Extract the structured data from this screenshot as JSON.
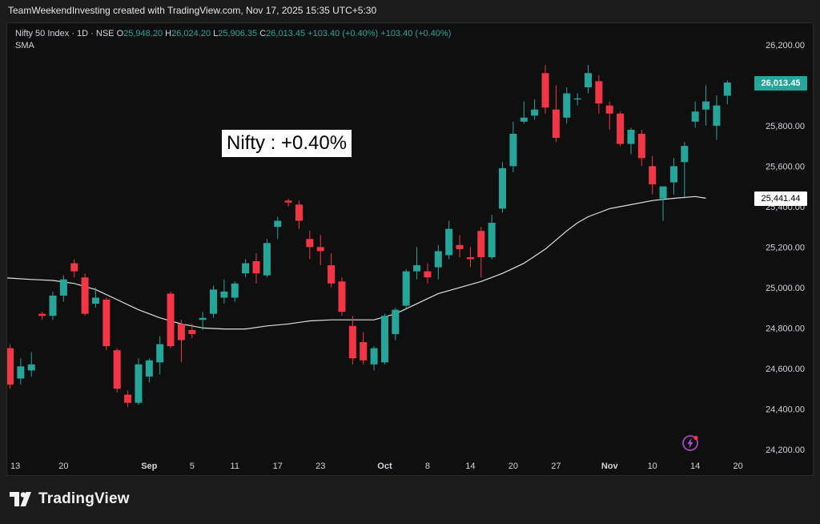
{
  "header": {
    "credit": "TeamWeekendInvesting created with TradingView.com, Nov 17, 2025 15:35 UTC+5:30"
  },
  "legend": {
    "symbol": "Nifty 50 Index · 1D · NSE",
    "o_label": "O",
    "o_value": "25,948.20",
    "h_label": "H",
    "h_value": "26,024.20",
    "l_label": "L",
    "l_value": "25,906.35",
    "c_label": "C",
    "c_value": "26,013.45",
    "change": "+103.40 (+0.40%)",
    "change2": "+103.40 (+0.40%)",
    "indicator": "SMA"
  },
  "annotation": {
    "text": "Nifty : +0.40%"
  },
  "price_badges": {
    "last_close": "26,013.45",
    "sma": "25,441.44"
  },
  "brand": {
    "name": "TradingView"
  },
  "colors": {
    "up": "#26a69a",
    "down": "#f23645",
    "sma": "#e0e0e0",
    "background": "#0f0f0f",
    "axis_text": "#d1d4dc"
  },
  "chart_data": {
    "type": "candlestick",
    "title": "Nifty 50 Index · 1D · NSE",
    "y_ticks": [
      "26,200.00",
      "26,000.00",
      "25,800.00",
      "25,600.00",
      "25,400.00",
      "25,200.00",
      "25,000.00",
      "24,800.00",
      "24,600.00",
      "24,400.00",
      "24,200.00"
    ],
    "y_tick_values": [
      26200,
      26000,
      25800,
      25600,
      25400,
      25200,
      25000,
      24800,
      24600,
      24400,
      24200
    ],
    "ylim": [
      24120,
      26275
    ],
    "x_ticks": [
      {
        "label": "13",
        "index": 0.5
      },
      {
        "label": "20",
        "index": 5
      },
      {
        "label": "Sep",
        "index": 13
      },
      {
        "label": "5",
        "index": 17
      },
      {
        "label": "11",
        "index": 21
      },
      {
        "label": "17",
        "index": 25
      },
      {
        "label": "23",
        "index": 29
      },
      {
        "label": "Oct",
        "index": 35
      },
      {
        "label": "8",
        "index": 39
      },
      {
        "label": "14",
        "index": 43
      },
      {
        "label": "20",
        "index": 47
      },
      {
        "label": "27",
        "index": 51
      },
      {
        "label": "Nov",
        "index": 56
      },
      {
        "label": "10",
        "index": 60
      },
      {
        "label": "14",
        "index": 64
      },
      {
        "label": "20",
        "index": 68
      }
    ],
    "series": [
      {
        "name": "Nifty 50 Index",
        "type": "candlestick",
        "ohlc": [
          [
            24700,
            24720,
            24500,
            24520
          ],
          [
            24550,
            24650,
            24520,
            24610
          ],
          [
            24590,
            24680,
            24560,
            24620
          ],
          [
            24870,
            24880,
            24840,
            24860
          ],
          [
            24860,
            24980,
            24840,
            24960
          ],
          [
            24960,
            25060,
            24930,
            25040
          ],
          [
            25120,
            25140,
            25050,
            25080
          ],
          [
            25050,
            25070,
            24860,
            24870
          ],
          [
            24920,
            25000,
            24900,
            24950
          ],
          [
            24940,
            24950,
            24690,
            24710
          ],
          [
            24690,
            24700,
            24480,
            24500
          ],
          [
            24470,
            24490,
            24410,
            24430
          ],
          [
            24430,
            24650,
            24420,
            24620
          ],
          [
            24560,
            24650,
            24530,
            24640
          ],
          [
            24630,
            24760,
            24570,
            24720
          ],
          [
            24970,
            24980,
            24700,
            24710
          ],
          [
            24820,
            24840,
            24630,
            24740
          ],
          [
            24790,
            24820,
            24750,
            24770
          ],
          [
            24840,
            24880,
            24790,
            24850
          ],
          [
            24870,
            25010,
            24850,
            24990
          ],
          [
            24950,
            25040,
            24920,
            24980
          ],
          [
            24950,
            25030,
            24930,
            25020
          ],
          [
            25070,
            25140,
            25050,
            25120
          ],
          [
            25130,
            25170,
            25020,
            25070
          ],
          [
            25060,
            25240,
            25050,
            25220
          ],
          [
            25300,
            25350,
            25240,
            25330
          ],
          [
            25430,
            25440,
            25400,
            25420
          ],
          [
            25410,
            25430,
            25290,
            25330
          ],
          [
            25240,
            25280,
            25140,
            25200
          ],
          [
            25200,
            25260,
            25110,
            25180
          ],
          [
            25110,
            25170,
            25000,
            25020
          ],
          [
            25030,
            25050,
            24860,
            24880
          ],
          [
            24810,
            24860,
            24620,
            24650
          ],
          [
            24730,
            24780,
            24620,
            24640
          ],
          [
            24620,
            24710,
            24590,
            24700
          ],
          [
            24630,
            24870,
            24620,
            24860
          ],
          [
            24770,
            24900,
            24740,
            24890
          ],
          [
            24910,
            25090,
            24900,
            25080
          ],
          [
            25080,
            25200,
            25040,
            25110
          ],
          [
            25080,
            25120,
            25020,
            25050
          ],
          [
            25100,
            25210,
            25040,
            25180
          ],
          [
            25160,
            25330,
            25140,
            25290
          ],
          [
            25210,
            25260,
            25150,
            25190
          ],
          [
            25150,
            25200,
            25100,
            25140
          ],
          [
            25280,
            25300,
            25050,
            25150
          ],
          [
            25150,
            25360,
            25140,
            25320
          ],
          [
            25390,
            25620,
            25370,
            25590
          ],
          [
            25600,
            25820,
            25570,
            25760
          ],
          [
            25820,
            25920,
            25810,
            25840
          ],
          [
            25850,
            25930,
            25830,
            25880
          ],
          [
            26060,
            26100,
            25860,
            25890
          ],
          [
            25880,
            26000,
            25720,
            25740
          ],
          [
            25840,
            25990,
            25810,
            25960
          ],
          [
            25930,
            25960,
            25900,
            25935
          ],
          [
            25990,
            26100,
            25960,
            26060
          ],
          [
            26020,
            26050,
            25860,
            25910
          ],
          [
            25900,
            25920,
            25780,
            25860
          ],
          [
            25860,
            25870,
            25700,
            25710
          ],
          [
            25710,
            25790,
            25660,
            25780
          ],
          [
            25760,
            25780,
            25600,
            25640
          ],
          [
            25600,
            25650,
            25460,
            25510
          ],
          [
            25440,
            25490,
            25330,
            25500
          ],
          [
            25520,
            25640,
            25460,
            25600
          ],
          [
            25620,
            25720,
            25440,
            25700
          ],
          [
            25820,
            25920,
            25790,
            25870
          ],
          [
            25880,
            26000,
            25800,
            25920
          ],
          [
            25800,
            25950,
            25730,
            25900
          ],
          [
            25948.2,
            26024.2,
            25906.35,
            26013.45
          ]
        ]
      },
      {
        "name": "SMA",
        "type": "line",
        "x": [
          -1,
          2,
          4,
          6,
          8,
          10,
          12,
          14,
          16,
          18,
          20,
          22,
          24,
          26,
          28,
          30,
          32,
          34,
          36,
          38,
          40,
          42,
          44,
          46,
          48,
          50,
          52,
          53,
          54,
          55,
          56,
          58,
          60,
          62,
          64,
          65
        ],
        "values": [
          25050,
          25040,
          25035,
          25020,
          24990,
          24940,
          24890,
          24850,
          24820,
          24800,
          24795,
          24795,
          24810,
          24820,
          24835,
          24840,
          24840,
          24840,
          24870,
          24920,
          24970,
          25000,
          25030,
          25070,
          25120,
          25190,
          25280,
          25320,
          25350,
          25370,
          25390,
          25410,
          25430,
          25441,
          25450,
          25441.44
        ]
      }
    ]
  }
}
